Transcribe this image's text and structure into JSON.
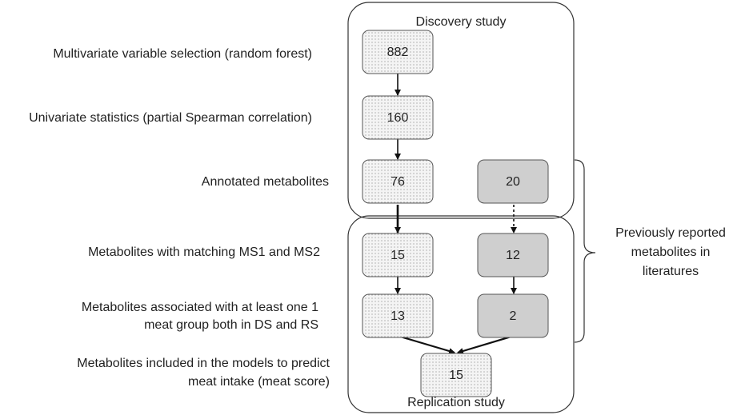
{
  "groups": {
    "discovery": "Discovery study",
    "replication": "Replication study"
  },
  "steps": [
    {
      "lines": [
        "Multivariate variable selection (random forest)"
      ]
    },
    {
      "lines": [
        "Univariate statistics (partial Spearman correlation)"
      ]
    },
    {
      "lines": [
        "Annotated metabolites"
      ]
    },
    {
      "lines": [
        "Metabolites with matching MS1 and MS2"
      ]
    },
    {
      "lines": [
        "Metabolites associated with at least one 1",
        "meat group both in DS and RS"
      ]
    },
    {
      "lines": [
        "Metabolites included in the models to predict",
        "meat intake (meat score)"
      ]
    }
  ],
  "nodes": [
    {
      "label": "882"
    },
    {
      "label": "160"
    },
    {
      "label": "76"
    },
    {
      "label": "20"
    },
    {
      "label": "15"
    },
    {
      "label": "12"
    },
    {
      "label": "13"
    },
    {
      "label": "2"
    },
    {
      "label": "15"
    }
  ],
  "note": [
    "Previously reported",
    "metabolites in",
    "literatures"
  ]
}
